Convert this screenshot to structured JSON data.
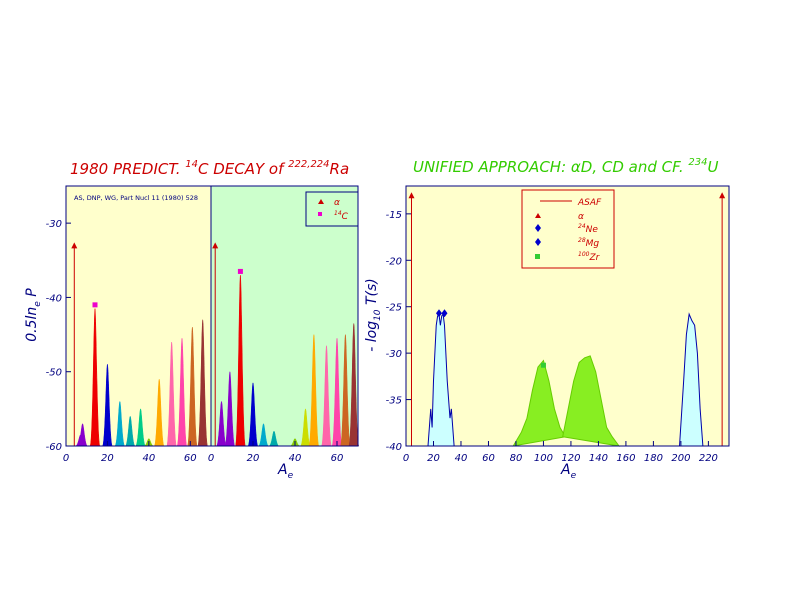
{
  "left_title": {
    "prefix": "1980 PREDICT. ",
    "sup1": "14",
    "mid": "C  DECAY of ",
    "sup2": "222,224",
    "suffix": "Ra"
  },
  "right_title": {
    "prefix": "UNIFIED APPROACH: ",
    "alpha": "α",
    "mid": "D, CD and CF. ",
    "sup": "234",
    "suffix": "U"
  },
  "left_ylabel": {
    "main": "0.5ln",
    "sub": "e",
    "tail": " P"
  },
  "right_ylabel": {
    "prefix": "- log",
    "sub": "10",
    "tail": " T(s)"
  },
  "xlabel": {
    "main": "A",
    "sub": "e"
  },
  "reference": "AS, DNP, WG, Part Nucl 11 (1980) 528",
  "colors": {
    "yellow_bg": "#ffffcc",
    "green_bg": "#ccffcc",
    "axis": "#000080",
    "red_title": "#cc0000",
    "green_title": "#33cc00"
  },
  "chart_data": [
    {
      "type": "area",
      "panel": "left-1",
      "background": "yellow",
      "xlim": [
        0,
        70
      ],
      "ylim": [
        -60,
        -25
      ],
      "xticks": [
        0,
        20,
        40,
        60
      ],
      "yticks": [
        -60,
        -50,
        -40,
        -30
      ],
      "alpha_marker": {
        "x": 4,
        "y": -33
      },
      "c14_point": {
        "x": 14,
        "y": -41
      },
      "peaks": [
        {
          "x": 7,
          "y": -58.5,
          "color": "#8800cc"
        },
        {
          "x": 8,
          "y": -57,
          "color": "#8800cc"
        },
        {
          "x": 14,
          "y": -41.5,
          "color": "#ee0000"
        },
        {
          "x": 20,
          "y": -49,
          "color": "#0000cc"
        },
        {
          "x": 26,
          "y": -54,
          "color": "#00aacc"
        },
        {
          "x": 31,
          "y": -56,
          "color": "#00aaaa"
        },
        {
          "x": 36,
          "y": -55,
          "color": "#00cc88"
        },
        {
          "x": 40,
          "y": -59,
          "color": "#88cc00"
        },
        {
          "x": 45,
          "y": -51,
          "color": "#ffaa00"
        },
        {
          "x": 51,
          "y": -46,
          "color": "#ff66aa"
        },
        {
          "x": 56,
          "y": -45.5,
          "color": "#ff44aa"
        },
        {
          "x": 61,
          "y": -44,
          "color": "#cc6622"
        },
        {
          "x": 66,
          "y": -43,
          "color": "#993333"
        }
      ]
    },
    {
      "type": "area",
      "panel": "left-2",
      "background": "green",
      "legend": [
        "α",
        "14C"
      ],
      "xlim": [
        0,
        70
      ],
      "ylim": [
        -60,
        -25
      ],
      "xticks": [
        0,
        20,
        40,
        60
      ],
      "alpha_marker": {
        "x": 2,
        "y": -33
      },
      "c14_point": {
        "x": 14,
        "y": -36.5
      },
      "peaks": [
        {
          "x": 5,
          "y": -54,
          "color": "#8800cc"
        },
        {
          "x": 9,
          "y": -50,
          "color": "#8800cc"
        },
        {
          "x": 14,
          "y": -37,
          "color": "#ee0000"
        },
        {
          "x": 20,
          "y": -51.5,
          "color": "#0000cc"
        },
        {
          "x": 25,
          "y": -57,
          "color": "#00aacc"
        },
        {
          "x": 30,
          "y": -58,
          "color": "#00aaaa"
        },
        {
          "x": 40,
          "y": -59,
          "color": "#88cc00"
        },
        {
          "x": 45,
          "y": -55,
          "color": "#ccdd00"
        },
        {
          "x": 49,
          "y": -45,
          "color": "#ffaa00"
        },
        {
          "x": 55,
          "y": -46.5,
          "color": "#ff66aa"
        },
        {
          "x": 60,
          "y": -45.5,
          "color": "#ff44aa"
        },
        {
          "x": 64,
          "y": -45,
          "color": "#cc6622"
        },
        {
          "x": 68,
          "y": -43.5,
          "color": "#993333"
        }
      ]
    },
    {
      "type": "area",
      "panel": "right",
      "background": "yellow",
      "xlim": [
        0,
        235
      ],
      "ylim": [
        -40,
        -12
      ],
      "xticks": [
        0,
        20,
        40,
        60,
        80,
        100,
        120,
        140,
        160,
        180,
        200,
        220
      ],
      "yticks": [
        -40,
        -35,
        -30,
        -25,
        -20,
        -15
      ],
      "legend": [
        "ASAF",
        "α",
        "24Ne",
        "28Mg",
        "100Zr"
      ],
      "alpha_marker": {
        "x": 4,
        "y": -13
      },
      "right_marker": {
        "x": 230,
        "y": -13
      },
      "points": [
        {
          "x": 24,
          "y": -25.7,
          "marker": "diamond",
          "label": "24Ne"
        },
        {
          "x": 28,
          "y": -25.7,
          "marker": "diamond",
          "label": "28Mg"
        },
        {
          "x": 100,
          "y": -31.3,
          "marker": "square",
          "label": "100Zr"
        }
      ],
      "curves": [
        {
          "name": "cluster-light",
          "fill": "#ccffff",
          "x": [
            16,
            18,
            19,
            20,
            21,
            22,
            23,
            24,
            25,
            26,
            27,
            28,
            29,
            30,
            31,
            32,
            33,
            34,
            35
          ],
          "y": [
            -40,
            -36,
            -38,
            -33,
            -30,
            -27,
            -26,
            -25.8,
            -27,
            -26,
            -25.8,
            -27,
            -30,
            -33,
            -35,
            -37,
            -36,
            -38,
            -40
          ]
        },
        {
          "name": "fission-peak-1",
          "fill": "#88ee22",
          "x": [
            78,
            84,
            88,
            92,
            96,
            100,
            104,
            108,
            112,
            116
          ],
          "y": [
            -40,
            -38.5,
            -37,
            -34,
            -31.5,
            -30.8,
            -33,
            -36,
            -38,
            -39
          ]
        },
        {
          "name": "fission-peak-2",
          "fill": "#88ee22",
          "x": [
            114,
            118,
            122,
            126,
            130,
            134,
            138,
            142,
            146,
            150,
            155
          ],
          "y": [
            -39,
            -36,
            -33,
            -31,
            -30.5,
            -30.3,
            -32,
            -35,
            -38,
            -39,
            -40
          ]
        },
        {
          "name": "cluster-heavy",
          "fill": "#ccffff",
          "x": [
            199,
            202,
            204,
            206,
            208,
            210,
            212,
            214,
            216
          ],
          "y": [
            -40,
            -33,
            -28,
            -25.8,
            -26.5,
            -27,
            -30,
            -36,
            -40
          ]
        }
      ]
    }
  ]
}
